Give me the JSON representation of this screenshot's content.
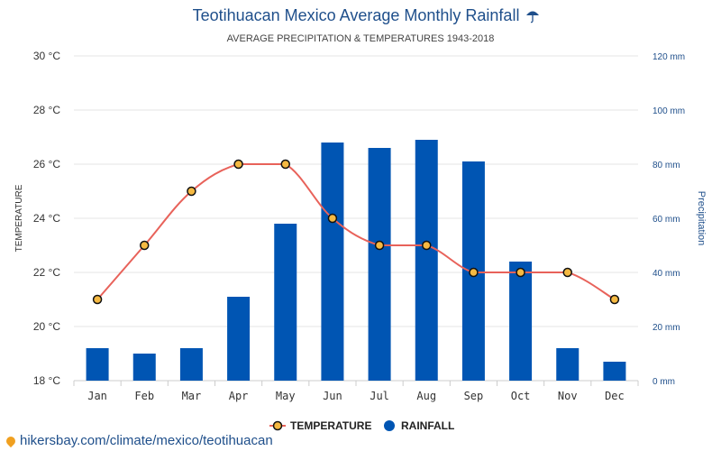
{
  "chart_data": {
    "type": "bar",
    "title": "Teotihuacan Mexico Average Monthly Rainfall",
    "title_icon": "umbrella-icon",
    "subtitle": "AVERAGE PRECIPITATION & TEMPERATURES 1943-2018",
    "categories": [
      "Jan",
      "Feb",
      "Mar",
      "Apr",
      "May",
      "Jun",
      "Jul",
      "Aug",
      "Sep",
      "Oct",
      "Nov",
      "Dec"
    ],
    "series": [
      {
        "name": "TEMPERATURE",
        "type": "line",
        "axis": "left",
        "color": "#e8625a",
        "marker_fill": "#f5b942",
        "values": [
          21,
          23,
          25,
          26,
          26,
          24,
          23,
          23,
          22,
          22,
          22,
          21
        ]
      },
      {
        "name": "RAINFALL",
        "type": "bar",
        "axis": "right",
        "color": "#0055b3",
        "values": [
          12,
          10,
          12,
          31,
          58,
          88,
          86,
          89,
          81,
          44,
          12,
          7
        ]
      }
    ],
    "y_left": {
      "label": "TEMPERATURE",
      "min": 18,
      "max": 30,
      "ticks": [
        18,
        20,
        22,
        24,
        26,
        28,
        30
      ],
      "tick_labels": [
        "18 °C",
        "20 °C",
        "22 °C",
        "24 °C",
        "26 °C",
        "28 °C",
        "30 °C"
      ]
    },
    "y_right": {
      "label": "Precipitation",
      "min": 0,
      "max": 120,
      "ticks": [
        0,
        20,
        40,
        60,
        80,
        100,
        120
      ],
      "tick_labels": [
        "0 mm",
        "20 mm",
        "40 mm",
        "60 mm",
        "80 mm",
        "100 mm",
        "120 mm"
      ]
    },
    "grid": true,
    "legend_position": "bottom-center"
  },
  "source": {
    "text": "hikersbay.com/climate/mexico/teotihuacan"
  }
}
